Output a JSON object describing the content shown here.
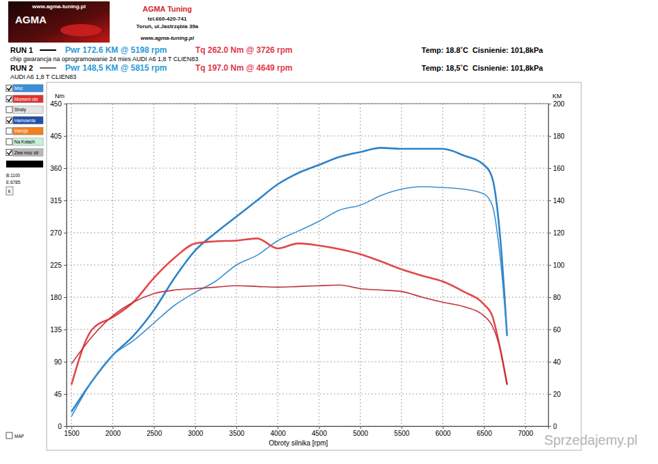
{
  "header": {
    "site": "www.agma-tuning.pl",
    "logo": "AGMA",
    "company": "AGMA Tuning",
    "phone": "tel.660-420-741",
    "address": "Toruń, ul.Jastrzębia 39a",
    "www": "www.agma-tuning.pl",
    "runs": [
      {
        "label": "RUN 1",
        "pwr": "Pwr 172.6 KM @ 5198 rpm",
        "tq": "Tq 262.0 Nm @ 3726 rpm",
        "conditions": "Temp: 18.8˚C  Cisnienie: 101,8kPa",
        "description": "chip gwarancja na oprogramowanie 24 mies AUDI A6 1,8 T CLIEN83"
      },
      {
        "label": "RUN 2",
        "pwr": "Pwr 148,5 KM @ 5815 rpm",
        "tq": "Tq 197.0 Nm @ 4649 rpm",
        "conditions": "Temp: 18,5˚C  Cisnienie: 101,8kPa",
        "description": "AUDI A6 1,8 T CLIEN83"
      }
    ]
  },
  "sidebar": {
    "items": [
      {
        "label": "Moc",
        "color": "#3a8fd6",
        "checked": true
      },
      {
        "label": "Moment obr",
        "color": "#e03030",
        "checked": true
      },
      {
        "label": "Straty",
        "color": "#e4e4e4",
        "checked": false
      },
      {
        "label": "Hamownia",
        "color": "#1f4fa8",
        "checked": true
      },
      {
        "label": "Inercja",
        "color": "#f08020",
        "checked": false
      },
      {
        "label": "Na Kołach",
        "color": "#c8f0d8",
        "checked": false
      },
      {
        "label": "Zew moc str",
        "color": "#b8b8b8",
        "checked": true
      }
    ],
    "b": "B:1100",
    "e": "E:6785",
    "k": "k",
    "map": "MAP"
  },
  "watermark": "Sprzedajemy.pl",
  "chart_data": {
    "type": "line",
    "x_label": "Obroty silnika [rpm]",
    "y_label": "Nm",
    "y2_label": "KM",
    "grid": true,
    "x": [
      1500,
      1750,
      2000,
      2250,
      2500,
      2750,
      3000,
      3250,
      3500,
      3750,
      4000,
      4250,
      4500,
      4750,
      5000,
      5250,
      5500,
      5750,
      6000,
      6250,
      6500,
      6600,
      6700,
      6780
    ],
    "xlim": [
      1440,
      7280
    ],
    "xticks": [
      1500,
      2000,
      2500,
      3000,
      3500,
      4000,
      4500,
      5000,
      5500,
      6000,
      6500,
      7000
    ],
    "ylim": [
      0,
      450
    ],
    "yticks": [
      0,
      45,
      90,
      135,
      180,
      225,
      270,
      315,
      360,
      405,
      450
    ],
    "y2lim": [
      0,
      200
    ],
    "y2ticks": [
      0,
      20,
      40,
      60,
      80,
      100,
      120,
      140,
      160,
      180,
      200
    ],
    "series": [
      {
        "color": "#2b82c9",
        "axis": "y2",
        "line_style": "solid",
        "values": [
          9,
          28,
          44,
          56,
          72,
          92,
          109,
          120,
          130,
          140,
          150,
          157,
          162,
          167,
          170,
          172.6,
          172,
          172,
          172,
          168,
          162,
          154,
          115,
          56
        ]
      },
      {
        "color": "#3c90cf",
        "axis": "y2",
        "line_style": "solid",
        "values": [
          6,
          28,
          44,
          53,
          64,
          75,
          83,
          90,
          100,
          106,
          115,
          121,
          127,
          134,
          137,
          143,
          147,
          148.5,
          148,
          147,
          144,
          137,
          103,
          56
        ]
      },
      {
        "color": "#e2474a",
        "line_style": "solid",
        "values": [
          58,
          135,
          152,
          173,
          207,
          235,
          255,
          258,
          259,
          262,
          248,
          255,
          252,
          247,
          240,
          230,
          219,
          210,
          202,
          188,
          170,
          154,
          106,
          58
        ]
      },
      {
        "color": "#c2303a",
        "line_style": "solid",
        "values": [
          87,
          125,
          154,
          173,
          185,
          190,
          192,
          194,
          196,
          195,
          194,
          195,
          196,
          197,
          192,
          190,
          188,
          180,
          173,
          167,
          154,
          140,
          106,
          58
        ]
      }
    ]
  }
}
